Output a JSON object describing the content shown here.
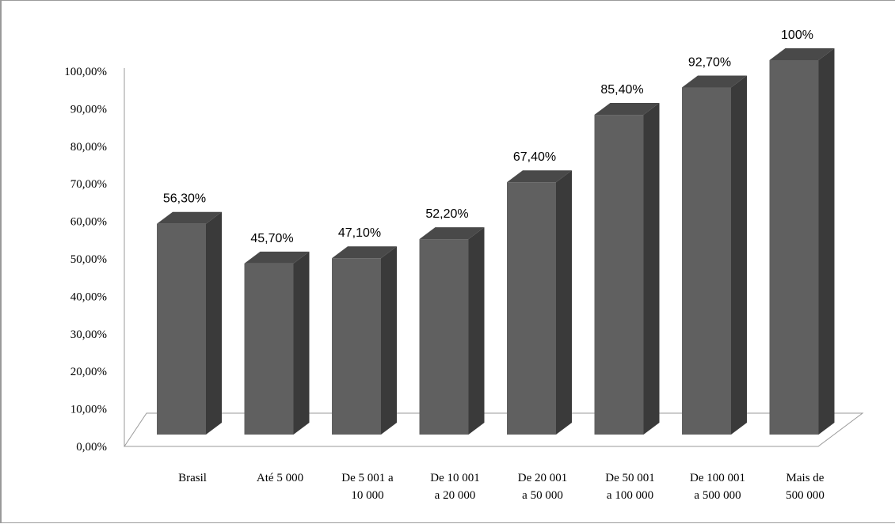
{
  "chart_data": {
    "type": "bar",
    "style": "3d-column",
    "categories": [
      [
        "Brasil"
      ],
      [
        "Até 5 000"
      ],
      [
        "De 5 001 a",
        "10 000"
      ],
      [
        "De 10 001",
        "a 20 000"
      ],
      [
        "De 20 001",
        "a 50 000"
      ],
      [
        "De 50 001",
        "a 100 000"
      ],
      [
        "De 100 001",
        "a 500 000"
      ],
      [
        "Mais de",
        "500 000"
      ]
    ],
    "values": [
      56.3,
      45.7,
      47.1,
      52.2,
      67.4,
      85.4,
      92.7,
      100
    ],
    "data_labels": [
      "56,30%",
      "45,70%",
      "47,10%",
      "52,20%",
      "67,40%",
      "85,40%",
      "92,70%",
      "100%"
    ],
    "yticks": [
      "0,00%",
      "10,00%",
      "20,00%",
      "30,00%",
      "40,00%",
      "50,00%",
      "60,00%",
      "70,00%",
      "80,00%",
      "90,00%",
      "100,00%"
    ],
    "ylim": [
      0,
      100
    ],
    "grid": false,
    "legend": "none",
    "colors": {
      "bar_front": "#606060",
      "bar_side": "#3a3a3a",
      "bar_top": "#494949",
      "floor": "#ffffff",
      "axis": "#9a9a9a"
    }
  }
}
